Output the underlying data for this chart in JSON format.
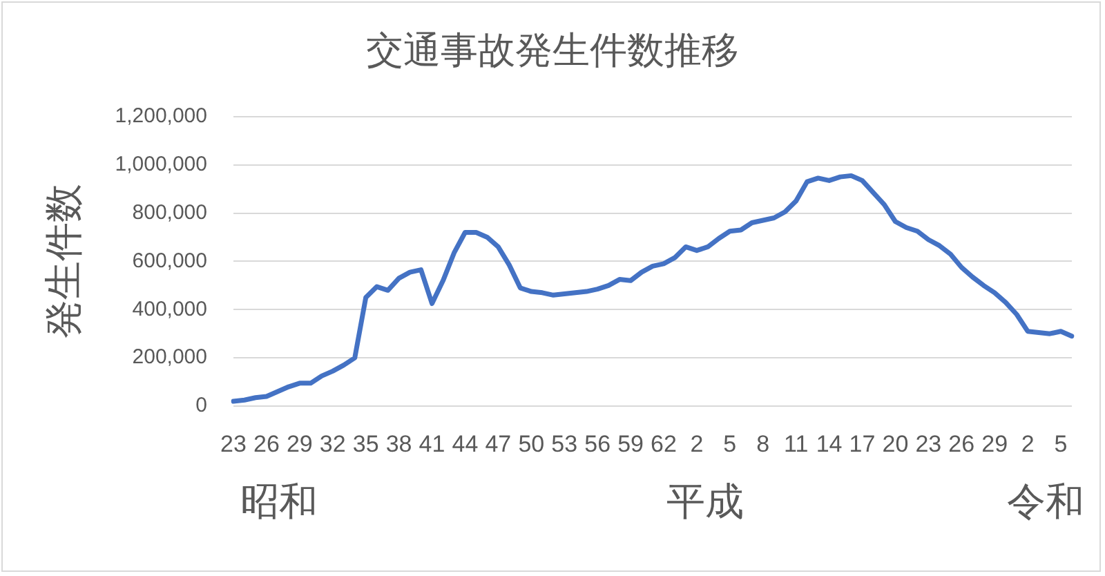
{
  "chart_data": {
    "type": "line",
    "title": "交通事故発生件数推移",
    "ylabel": "発生件数",
    "categories": [
      "23",
      null,
      null,
      "26",
      null,
      null,
      "29",
      null,
      null,
      "32",
      null,
      null,
      "35",
      null,
      null,
      "38",
      null,
      null,
      "41",
      null,
      null,
      "44",
      null,
      null,
      "47",
      null,
      null,
      "50",
      null,
      null,
      "53",
      null,
      null,
      "56",
      null,
      null,
      "59",
      null,
      null,
      "62",
      null,
      null,
      "2",
      null,
      null,
      "5",
      null,
      null,
      "8",
      null,
      null,
      "11",
      null,
      null,
      "14",
      null,
      null,
      "17",
      null,
      null,
      "20",
      null,
      null,
      "23",
      null,
      null,
      "26",
      null,
      null,
      "29",
      null,
      null,
      "2",
      null,
      null,
      "5",
      null
    ],
    "values": [
      20000,
      25000,
      35000,
      40000,
      60000,
      80000,
      95000,
      95000,
      125000,
      145000,
      170000,
      200000,
      450000,
      495000,
      480000,
      530000,
      555000,
      565000,
      425000,
      520000,
      635000,
      720000,
      720000,
      700000,
      660000,
      585000,
      490000,
      475000,
      470000,
      460000,
      465000,
      470000,
      475000,
      485000,
      500000,
      525000,
      520000,
      555000,
      580000,
      590000,
      615000,
      660000,
      645000,
      660000,
      695000,
      725000,
      730000,
      760000,
      770000,
      780000,
      805000,
      850000,
      930000,
      945000,
      935000,
      950000,
      955000,
      935000,
      885000,
      835000,
      765000,
      740000,
      725000,
      690000,
      665000,
      630000,
      575000,
      535000,
      500000,
      470000,
      430000,
      380000,
      310000,
      305000,
      300000,
      310000,
      290000
    ],
    "color": "#4472c4",
    "ylim": [
      0,
      1200000
    ],
    "yticks": [
      0,
      {
        "value": 200000,
        "label": "200,000"
      },
      {
        "value": 400000,
        "label": "400,000"
      },
      {
        "value": 600000,
        "label": "600,000"
      },
      {
        "value": 800000,
        "label": "800,000"
      },
      {
        "value": 1000000,
        "label": "1,000,000"
      },
      {
        "value": 1200000,
        "label": "1,200,000"
      }
    ],
    "grid": "y",
    "legend": false,
    "marker": "none",
    "line_style": "solid",
    "annotations": [
      "昭和",
      "平成",
      "令和"
    ]
  }
}
